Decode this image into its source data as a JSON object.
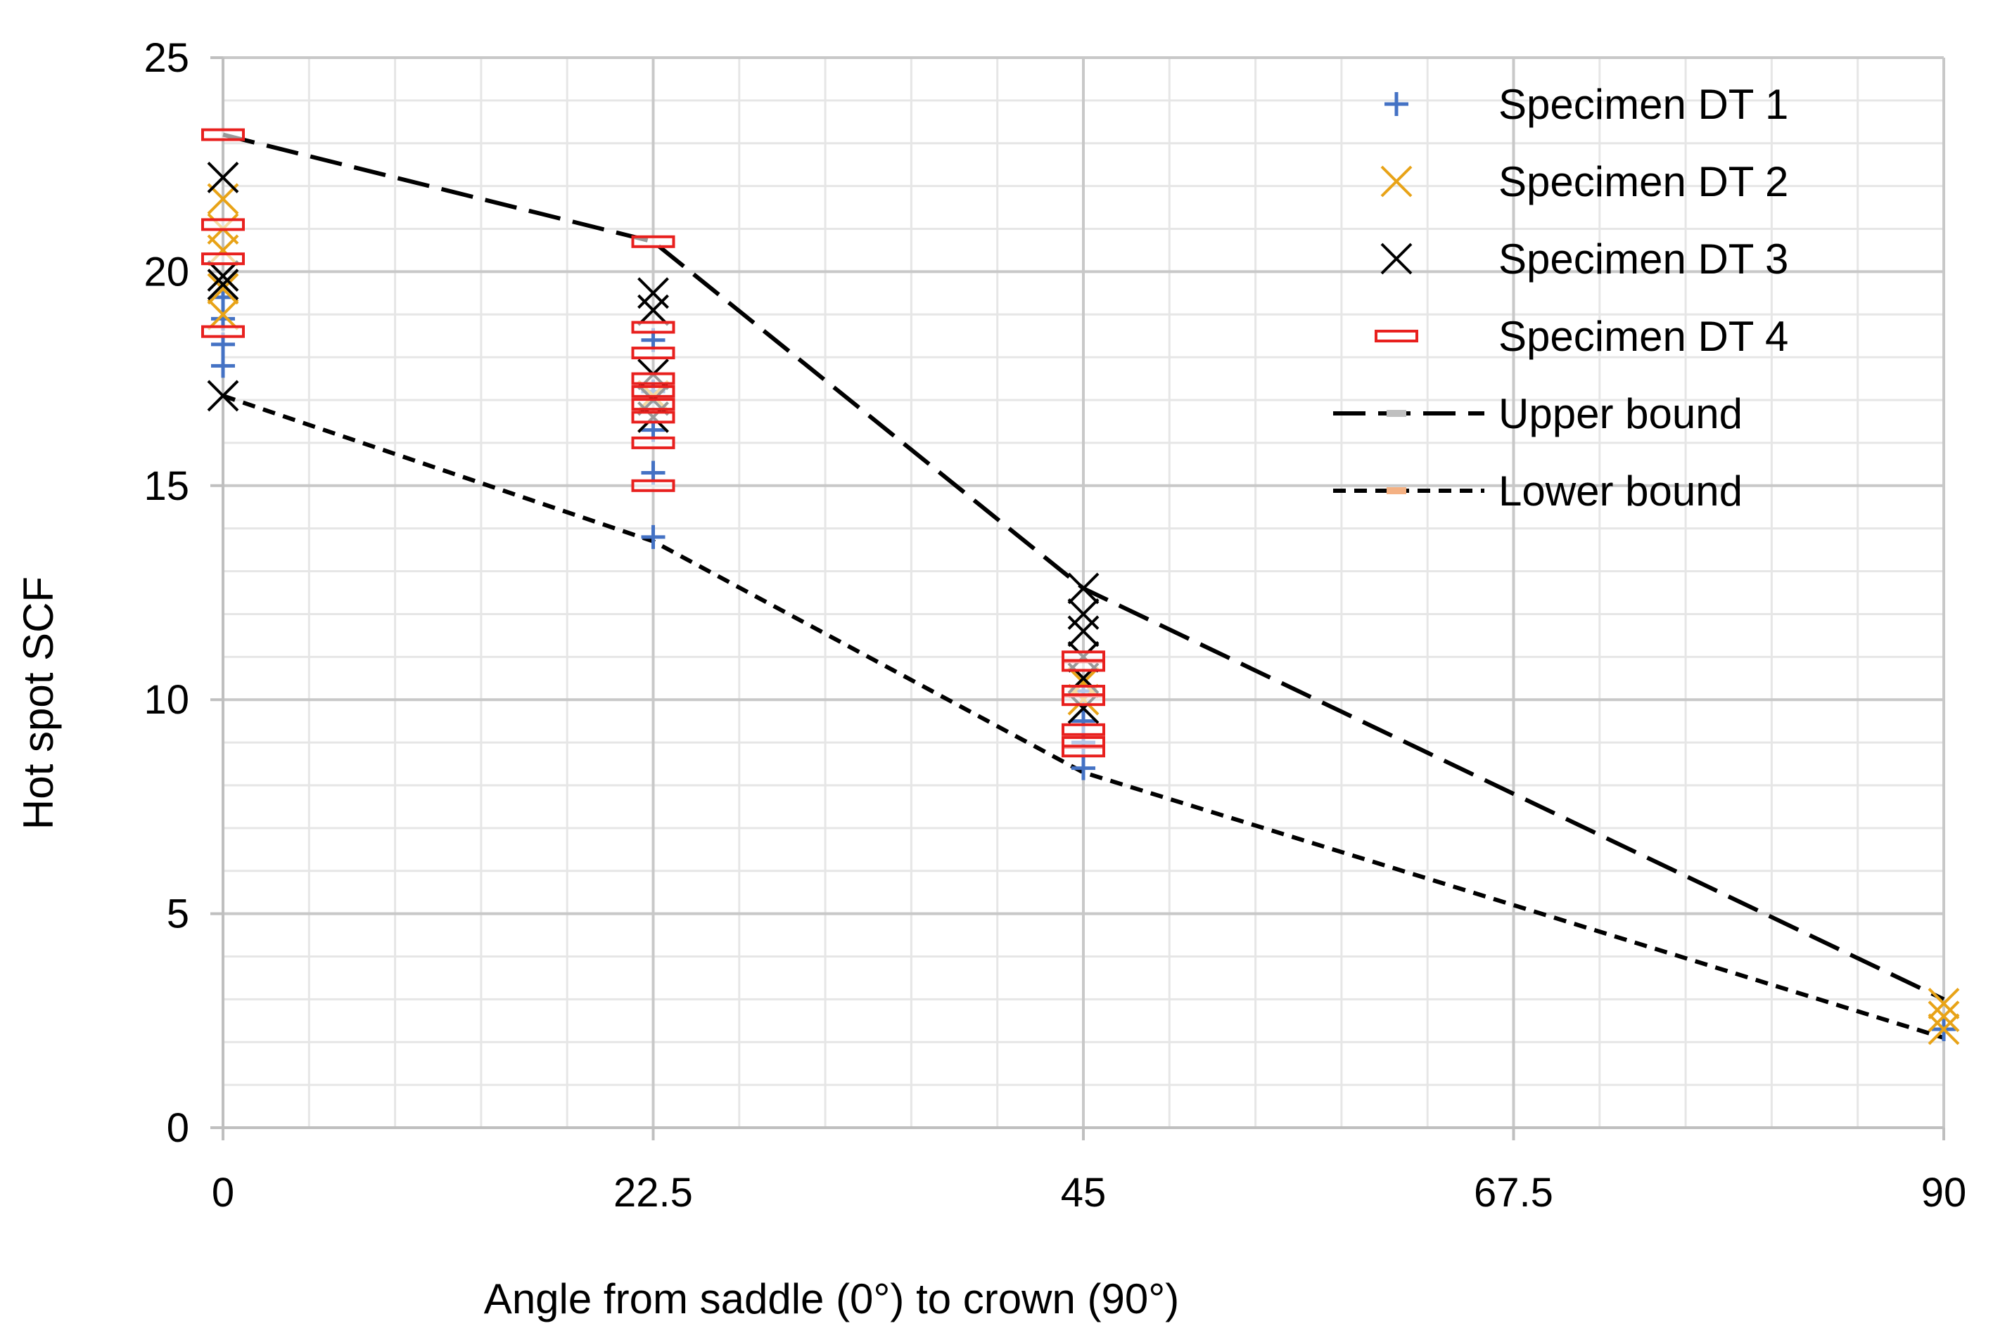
{
  "chart_data": {
    "type": "scatter",
    "title": "",
    "xlabel": "Angle from saddle (0°) to crown (90°)",
    "ylabel": "Hot spot SCF",
    "xlim": [
      0,
      90
    ],
    "ylim": [
      0,
      25
    ],
    "x_ticks": [
      "0",
      "22.5",
      "45",
      "67.5",
      "90"
    ],
    "x_tick_values": [
      0,
      22.5,
      45,
      67.5,
      90
    ],
    "y_ticks": [
      "0",
      "5",
      "10",
      "15",
      "20",
      "25"
    ],
    "y_tick_values": [
      0,
      5,
      10,
      15,
      20,
      25
    ],
    "x_minor_step": 4.5,
    "y_minor_step": 1,
    "grid": true,
    "legend_position": "top-right",
    "series": [
      {
        "name": "Specimen DT 1",
        "marker": "plus",
        "color": "#4472C4",
        "points": [
          [
            0,
            18.9
          ],
          [
            0,
            18.3
          ],
          [
            0,
            17.8
          ],
          [
            0,
            19.4
          ],
          [
            22.5,
            18.4
          ],
          [
            22.5,
            17.2
          ],
          [
            22.5,
            16.3
          ],
          [
            22.5,
            15.3
          ],
          [
            22.5,
            13.8
          ],
          [
            45,
            10.2
          ],
          [
            45,
            9.5
          ],
          [
            45,
            9.0
          ],
          [
            45,
            8.4
          ],
          [
            90,
            2.3
          ]
        ]
      },
      {
        "name": "Specimen DT 2",
        "marker": "x",
        "color": "#E8A317",
        "points": [
          [
            0,
            21.7
          ],
          [
            0,
            21.0
          ],
          [
            0,
            20.5
          ],
          [
            0,
            19.6
          ],
          [
            0,
            19.0
          ],
          [
            22.5,
            17.1
          ],
          [
            22.5,
            16.6
          ],
          [
            45,
            10.4
          ],
          [
            45,
            10.0
          ],
          [
            90,
            2.9
          ],
          [
            90,
            2.6
          ],
          [
            90,
            2.3
          ]
        ]
      },
      {
        "name": "Specimen DT 3",
        "marker": "x",
        "color": "#000000",
        "points": [
          [
            0,
            22.2
          ],
          [
            0,
            19.9
          ],
          [
            0,
            19.7
          ],
          [
            0,
            17.1
          ],
          [
            22.5,
            19.5
          ],
          [
            22.5,
            19.1
          ],
          [
            22.5,
            17.6
          ],
          [
            22.5,
            17.0
          ],
          [
            22.5,
            16.6
          ],
          [
            45,
            12.6
          ],
          [
            45,
            12.0
          ],
          [
            45,
            11.6
          ],
          [
            45,
            11.0
          ],
          [
            45,
            10.5
          ],
          [
            45,
            9.8
          ]
        ]
      },
      {
        "name": "Specimen DT 4",
        "marker": "dash-box",
        "color": "#E8201E",
        "points": [
          [
            0,
            23.2
          ],
          [
            0,
            21.1
          ],
          [
            0,
            20.3
          ],
          [
            0,
            18.6
          ],
          [
            22.5,
            20.7
          ],
          [
            22.5,
            18.7
          ],
          [
            22.5,
            18.1
          ],
          [
            22.5,
            17.5
          ],
          [
            22.5,
            17.2
          ],
          [
            22.5,
            16.9
          ],
          [
            22.5,
            16.6
          ],
          [
            22.5,
            16.0
          ],
          [
            22.5,
            15.0
          ],
          [
            45,
            11.0
          ],
          [
            45,
            10.8
          ],
          [
            45,
            10.2
          ],
          [
            45,
            10.0
          ],
          [
            45,
            9.3
          ],
          [
            45,
            9.0
          ],
          [
            45,
            8.8
          ]
        ]
      },
      {
        "name": "Upper bound",
        "type": "line",
        "dash": "long",
        "color": "#000000",
        "legend_marker_color": "#BFBFBF",
        "points": [
          [
            0,
            23.2
          ],
          [
            22.5,
            20.7
          ],
          [
            45,
            12.6
          ],
          [
            90,
            3.0
          ]
        ]
      },
      {
        "name": "Lower bound",
        "type": "line",
        "dash": "short",
        "color": "#000000",
        "legend_marker_color": "#F4B183",
        "points": [
          [
            0,
            17.1
          ],
          [
            22.5,
            13.7
          ],
          [
            45,
            8.3
          ],
          [
            90,
            2.1
          ]
        ]
      }
    ]
  }
}
